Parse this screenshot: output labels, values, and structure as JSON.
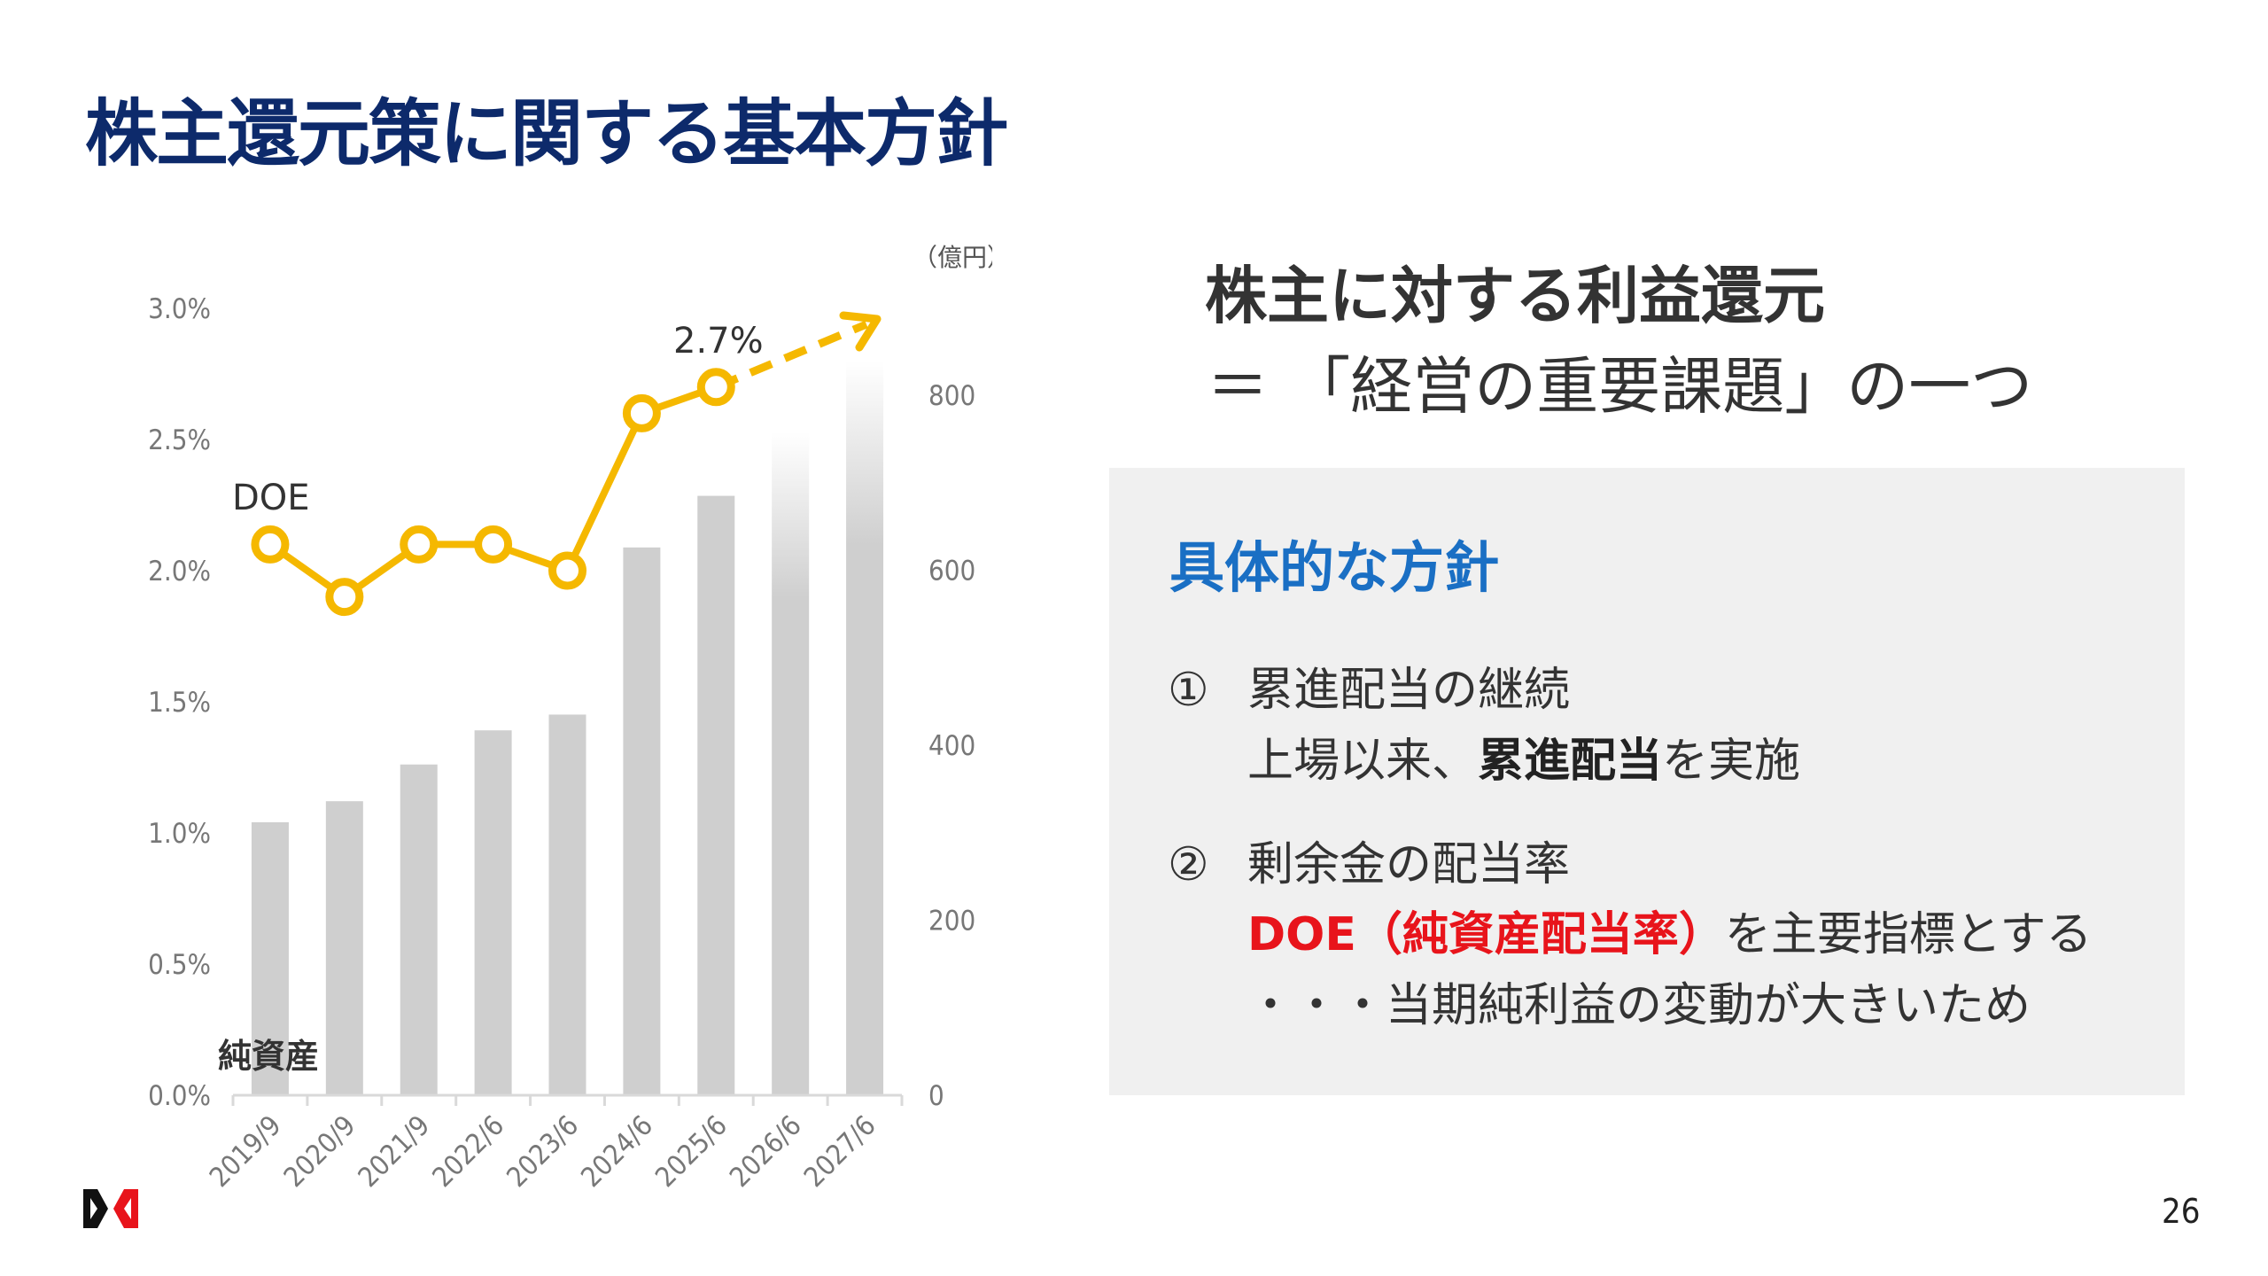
{
  "title": "株主還元策に関する基本方針",
  "chart_data": {
    "type": "bar+line",
    "categories": [
      "2019/9",
      "2020/9",
      "2021/9",
      "2022/6",
      "2023/6",
      "2024/6",
      "2025/6",
      "2026/6",
      "2027/6"
    ],
    "bar_series": {
      "name": "純資産",
      "values": [
        312,
        336,
        378,
        417,
        435,
        626,
        685,
        758,
        839
      ],
      "faded_categories": [
        "2026/6",
        "2027/6"
      ],
      "color": "#cfcfcf"
    },
    "line_series": {
      "name": "DOE",
      "values": [
        2.1,
        1.9,
        2.1,
        2.1,
        2.0,
        2.6,
        2.7
      ],
      "color": "#f5b800",
      "trend": "dashed arrow upward after 2025/6"
    },
    "annotation": "2.7%",
    "left_axis": {
      "ticks": [
        "0.0%",
        "0.5%",
        "1.0%",
        "1.5%",
        "2.0%",
        "2.5%",
        "3.0%"
      ],
      "ylim": [
        0,
        3.0
      ]
    },
    "right_axis": {
      "unit": "（億円）",
      "ticks": [
        "0",
        "200",
        "400",
        "600",
        "800"
      ],
      "ylim": [
        0,
        920
      ]
    }
  },
  "right": {
    "headline1": "株主に対する利益還元",
    "headline2": "＝ 「経営の重要課題」の一つ",
    "box_title": "具体的な方針",
    "item1": {
      "num": "①",
      "title": "累進配当の継続",
      "desc_pre": "上場以来、",
      "desc_bold": "累進配当",
      "desc_post": "を実施"
    },
    "item2": {
      "num": "②",
      "title": "剰余金の配当率",
      "desc_red": "DOE（純資産配当率）",
      "desc_post": "を主要指標とする",
      "reason": "・・・当期純利益の変動が大きいため"
    }
  },
  "page_number": "26",
  "logo": "company-logo"
}
